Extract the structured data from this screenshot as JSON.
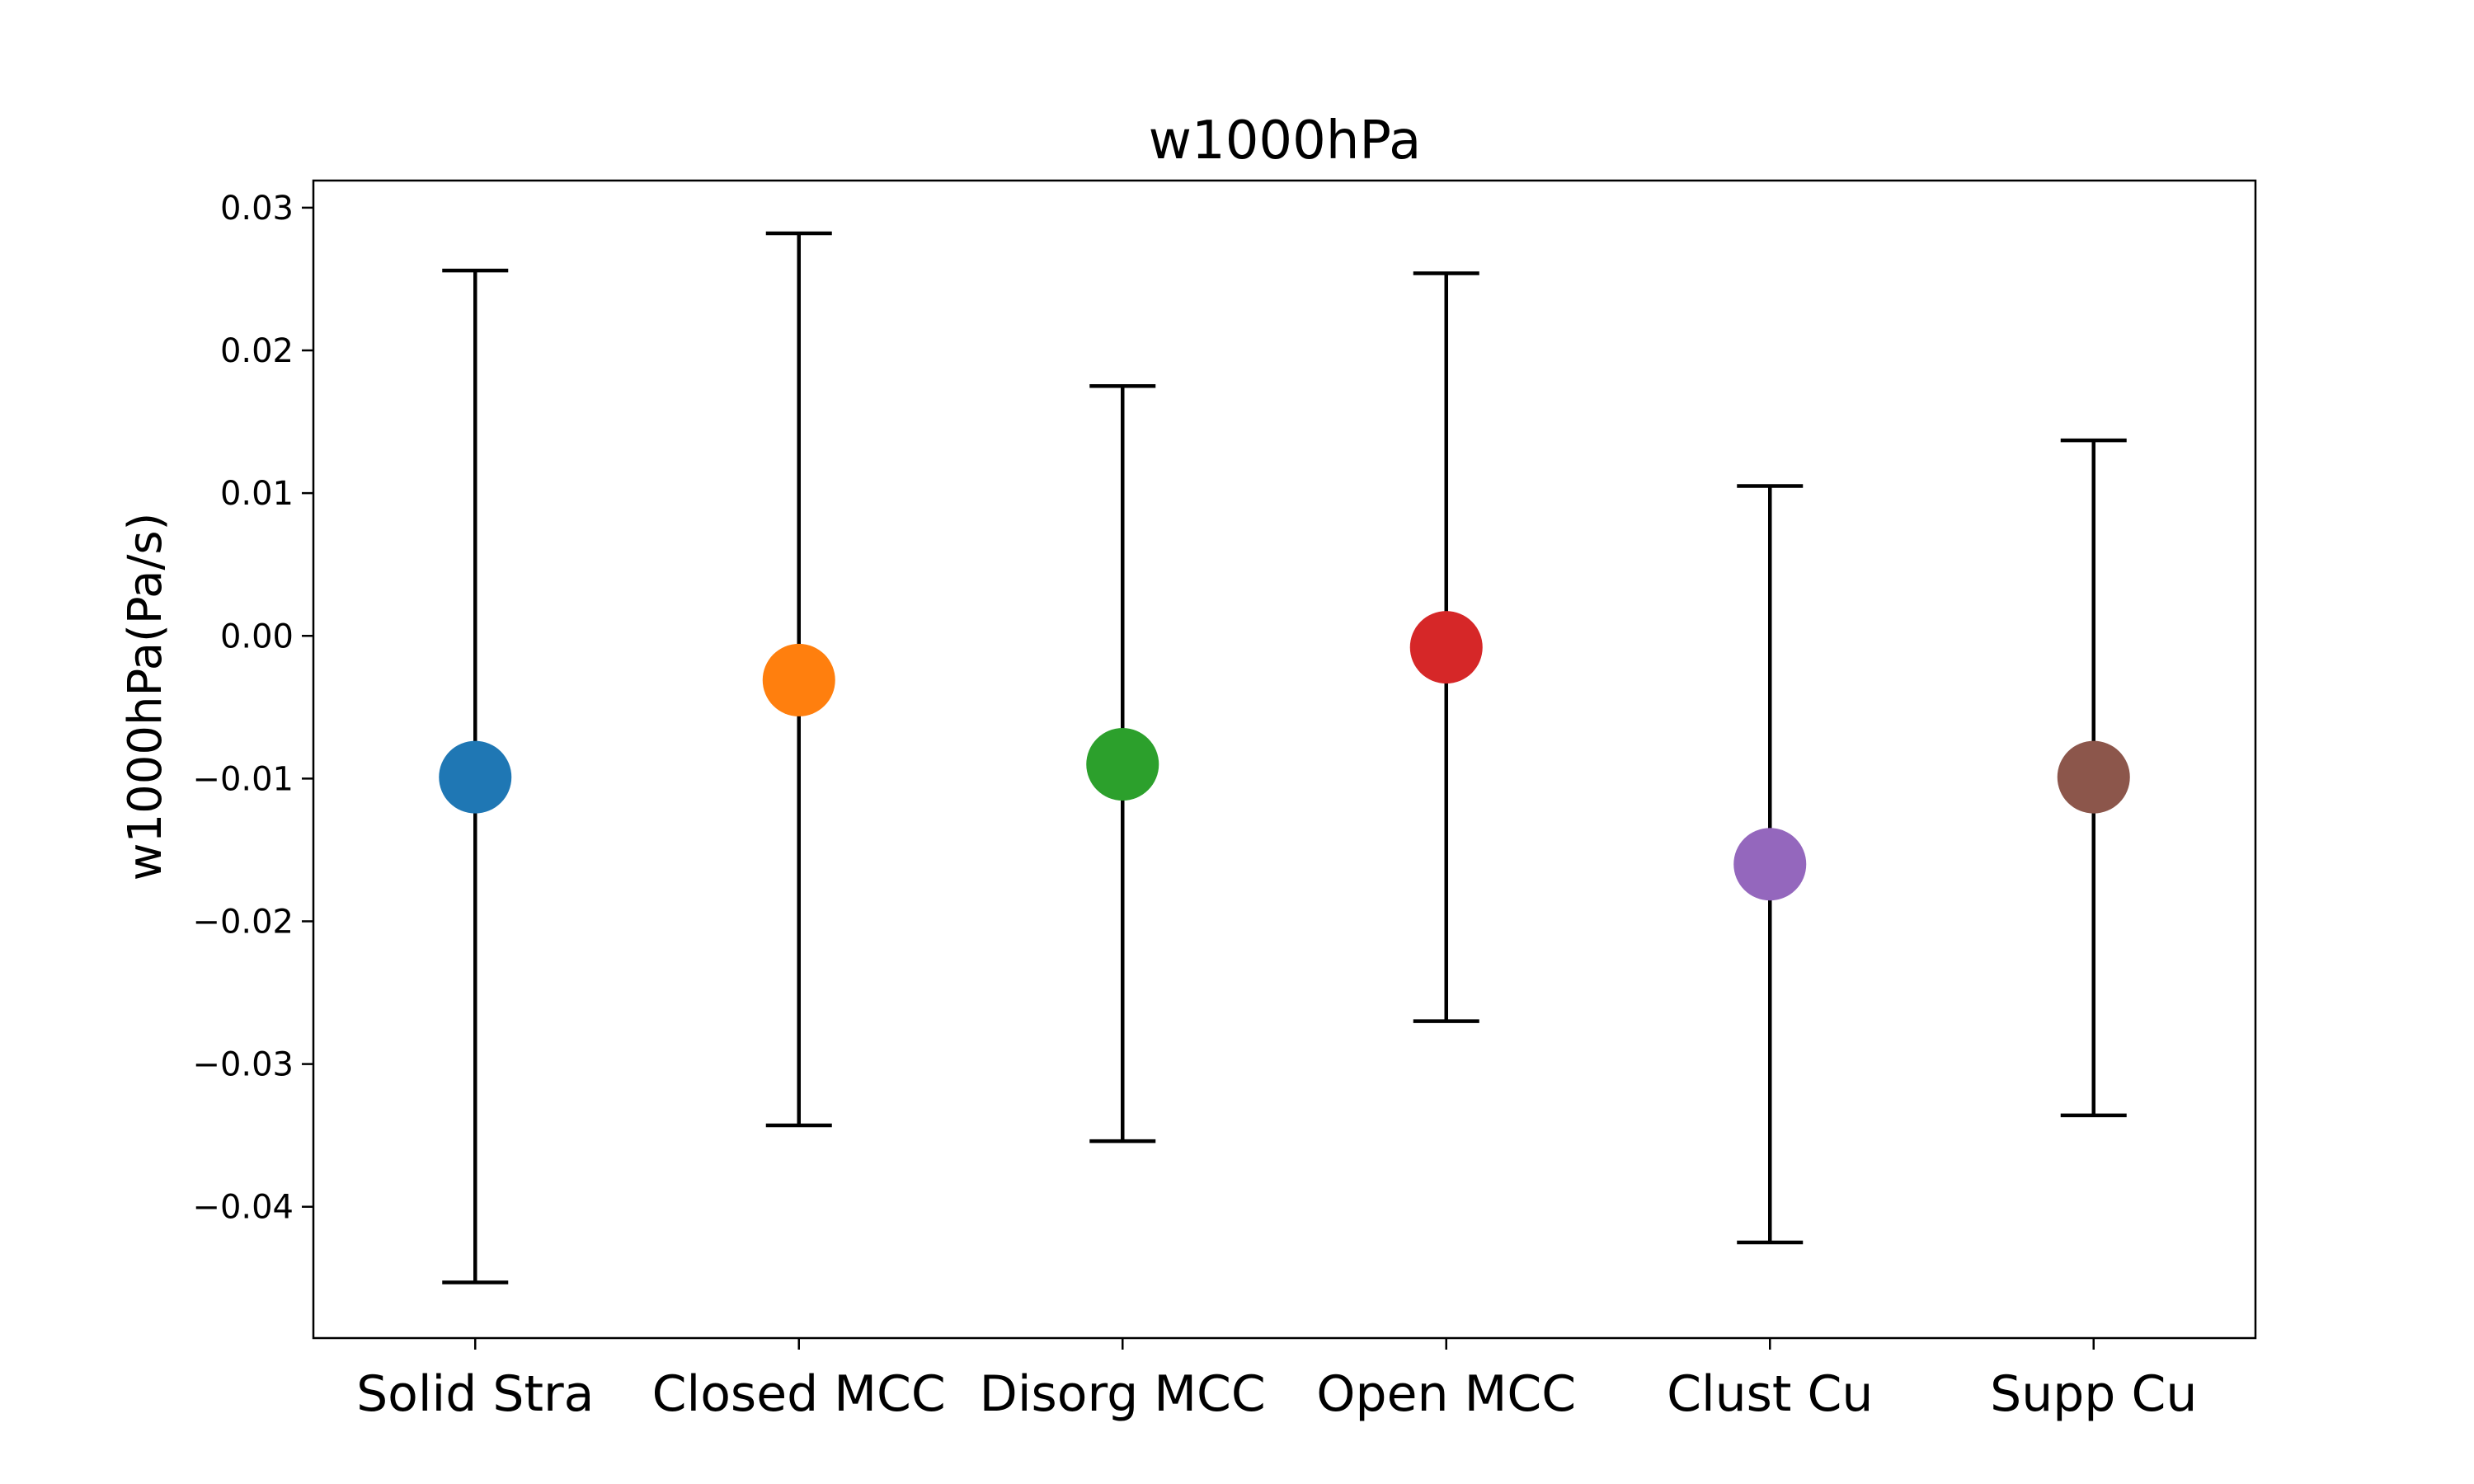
{
  "chart_data": {
    "type": "scatter",
    "title": "w1000hPa",
    "xlabel": "",
    "ylabel": "w1000hPa(Pa/s)",
    "categories": [
      "Solid Stra",
      "Closed MCC",
      "Disorg MCC",
      "Open MCC",
      "Clust Cu",
      "Supp Cu"
    ],
    "values": [
      -0.0099,
      -0.0031,
      -0.009,
      -0.0008,
      -0.016,
      -0.0099
    ],
    "error_low": [
      -0.0453,
      -0.0343,
      -0.0354,
      -0.027,
      -0.0425,
      -0.0336
    ],
    "error_high": [
      0.0256,
      0.0282,
      0.0175,
      0.0254,
      0.0105,
      0.0137
    ],
    "colors": [
      "#1f77b4",
      "#ff7f0e",
      "#2ca02c",
      "#d62728",
      "#9467bd",
      "#8c564b"
    ],
    "errorbar_color": "#000000",
    "ylim": [
      -0.0492,
      0.0319
    ],
    "yticks": [
      0.03,
      0.02,
      0.01,
      0.0,
      -0.01,
      -0.02,
      -0.03,
      -0.04
    ],
    "ytick_labels": [
      "0.03",
      "0.02",
      "0.01",
      "0.00",
      "−0.01",
      "−0.02",
      "−0.03",
      "−0.04"
    ],
    "grid": false,
    "legend": "none"
  }
}
